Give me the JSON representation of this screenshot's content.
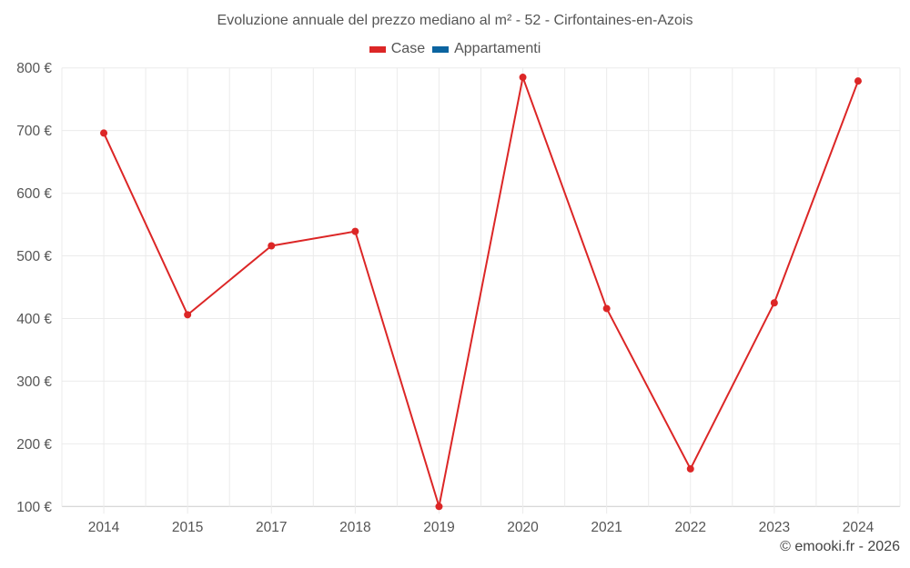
{
  "title": "Evoluzione annuale del prezzo mediano al m² - 52 - Cirfontaines-en-Azois",
  "legend": [
    {
      "label": "Case",
      "color": "#dc2626"
    },
    {
      "label": "Appartamenti",
      "color": "#0b64a0"
    }
  ],
  "credit": "© emooki.fr - 2026",
  "chart_data": {
    "type": "line",
    "title": "Evoluzione annuale del prezzo mediano al m² - 52 - Cirfontaines-en-Azois",
    "xlabel": "",
    "ylabel": "",
    "categories": [
      "2014",
      "2015",
      "2017",
      "2018",
      "2019",
      "2020",
      "2021",
      "2022",
      "2023",
      "2024"
    ],
    "series": [
      {
        "name": "Case",
        "color": "#dc2626",
        "values": [
          696,
          406,
          516,
          539,
          100,
          785,
          416,
          160,
          425,
          779
        ]
      },
      {
        "name": "Appartamenti",
        "color": "#0b64a0",
        "values": []
      }
    ],
    "yticks": [
      "100 €",
      "200 €",
      "300 €",
      "400 €",
      "500 €",
      "600 €",
      "700 €",
      "800 €"
    ],
    "ylim": [
      100,
      800
    ],
    "grid": true,
    "legend_position": "top"
  }
}
